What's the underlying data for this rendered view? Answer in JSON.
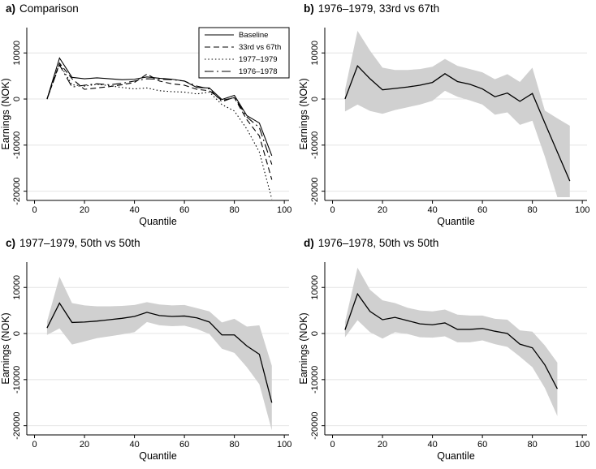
{
  "figure": {
    "background": "#ffffff",
    "line_color": "#000000",
    "band_color": "#d0d0d0",
    "grid_color": "#e4e4e4",
    "axis_color": "#000000",
    "legend_border_color": "#000000"
  },
  "chart_data": [
    {
      "id": "a",
      "type": "line",
      "panel_label": "a)",
      "title": "Comparison",
      "xlabel": "Quantile",
      "ylabel": "Earnings (NOK)",
      "xlim": [
        -3.1,
        101.9
      ],
      "ylim": [
        -22000,
        15500
      ],
      "xticks": [
        0,
        20,
        40,
        60,
        80,
        100
      ],
      "yticks": [
        -20000,
        -10000,
        0,
        10000
      ],
      "xtick_labels": [
        "0",
        "20",
        "40",
        "60",
        "80",
        "100"
      ],
      "ytick_labels": [
        "-20000",
        "-10000",
        "0",
        "10000"
      ],
      "grid": "horizontal",
      "legend": {
        "position": "top-right"
      },
      "x": [
        5,
        10,
        15,
        20,
        25,
        30,
        35,
        40,
        45,
        50,
        55,
        60,
        65,
        70,
        75,
        80,
        85,
        90,
        95
      ],
      "series": [
        {
          "name": "Baseline",
          "dash": "solid",
          "values": [
            0,
            8900,
            4700,
            4400,
            4600,
            4400,
            4200,
            4300,
            4800,
            4500,
            4300,
            3900,
            2500,
            2400,
            -100,
            800,
            -3600,
            -5200,
            -12300
          ]
        },
        {
          "name": "33rd vs 67th",
          "dash": "dashed",
          "values": [
            0,
            7800,
            4400,
            2100,
            2400,
            2700,
            3100,
            3600,
            5400,
            3900,
            3300,
            3000,
            2100,
            1800,
            -300,
            300,
            -4500,
            -8000,
            -17500
          ]
        },
        {
          "name": "1977–1979",
          "dash": "dotted",
          "values": [
            0,
            7600,
            3100,
            2800,
            3200,
            2900,
            2500,
            2200,
            2400,
            1800,
            1600,
            1500,
            1100,
            1500,
            -1200,
            -2600,
            -6500,
            -11500,
            -21700
          ]
        },
        {
          "name": "1976–1978",
          "dash": "dashdot",
          "values": [
            0,
            7400,
            2600,
            3000,
            3300,
            3100,
            3400,
            3900,
            4400,
            4300,
            4200,
            3900,
            2800,
            2200,
            -600,
            400,
            -3900,
            -6200,
            -14200
          ]
        }
      ]
    },
    {
      "id": "b",
      "type": "line-band",
      "panel_label": "b)",
      "title": "1976–1979, 33rd vs 67th",
      "xlabel": "Quantile",
      "ylabel": "Earnings (NOK)",
      "xlim": [
        -3.1,
        101.9
      ],
      "ylim": [
        -22000,
        15500
      ],
      "xticks": [
        0,
        20,
        40,
        60,
        80,
        100
      ],
      "yticks": [
        -20000,
        -10000,
        0,
        10000
      ],
      "xtick_labels": [
        "0",
        "20",
        "40",
        "60",
        "80",
        "100"
      ],
      "ytick_labels": [
        "-20000",
        "-10000",
        "0",
        "10000"
      ],
      "grid": "horizontal",
      "x": [
        5,
        10,
        15,
        20,
        25,
        30,
        35,
        40,
        45,
        50,
        55,
        60,
        65,
        70,
        75,
        80,
        85,
        90,
        95
      ],
      "series": [
        {
          "name": "",
          "dash": "solid",
          "values": [
            0,
            7200,
            4400,
            2000,
            2300,
            2600,
            3000,
            3600,
            5500,
            3800,
            3200,
            2200,
            500,
            1300,
            -500,
            1200,
            -5200,
            -11500,
            -17800
          ]
        }
      ],
      "band": {
        "upper": [
          2000,
          14800,
          10500,
          6800,
          6300,
          6300,
          6500,
          7000,
          8700,
          7200,
          6500,
          5800,
          4300,
          5400,
          3700,
          6800,
          -2500,
          -4200,
          -5800
        ],
        "lower": [
          -2700,
          -1200,
          -2600,
          -3200,
          -2400,
          -1800,
          -1200,
          -400,
          1800,
          500,
          -300,
          -1200,
          -3400,
          -2900,
          -5600,
          -4700,
          -12500,
          -21300,
          -21300
        ]
      }
    },
    {
      "id": "c",
      "type": "line-band",
      "panel_label": "c)",
      "title": "1977–1979, 50th vs 50th",
      "xlabel": "Quantile",
      "ylabel": "Earnings (NOK)",
      "xlim": [
        -3.1,
        101.9
      ],
      "ylim": [
        -22000,
        15500
      ],
      "xticks": [
        0,
        20,
        40,
        60,
        80,
        100
      ],
      "yticks": [
        -20000,
        -10000,
        0,
        10000
      ],
      "xtick_labels": [
        "0",
        "20",
        "40",
        "60",
        "80",
        "100"
      ],
      "ytick_labels": [
        "-20000",
        "-10000",
        "0",
        "10000"
      ],
      "grid": "horizontal",
      "x": [
        5,
        10,
        15,
        20,
        25,
        30,
        35,
        40,
        45,
        50,
        55,
        60,
        65,
        70,
        75,
        80,
        85,
        90,
        95
      ],
      "series": [
        {
          "name": "",
          "dash": "solid",
          "values": [
            1200,
            6600,
            2400,
            2500,
            2700,
            3000,
            3300,
            3700,
            4600,
            3900,
            3700,
            3800,
            3400,
            2500,
            -300,
            -300,
            -2700,
            -4500,
            -15000
          ]
        }
      ],
      "band": {
        "upper": [
          2600,
          12300,
          6600,
          6100,
          5900,
          5900,
          6000,
          6200,
          6800,
          6300,
          6100,
          6200,
          5500,
          4800,
          2400,
          3200,
          1500,
          1800,
          -7000
        ],
        "lower": [
          -300,
          1100,
          -2400,
          -1700,
          -1000,
          -600,
          -200,
          300,
          2500,
          1800,
          1600,
          1700,
          1000,
          -100,
          -3300,
          -4200,
          -7300,
          -11000,
          -21000
        ]
      }
    },
    {
      "id": "d",
      "type": "line-band",
      "panel_label": "d)",
      "title": "1976–1978, 50th vs 50th",
      "xlabel": "Quantile",
      "ylabel": "Earnings (NOK)",
      "xlim": [
        -3.1,
        101.9
      ],
      "ylim": [
        -22000,
        15500
      ],
      "xticks": [
        0,
        20,
        40,
        60,
        80,
        100
      ],
      "yticks": [
        -20000,
        -10000,
        0,
        10000
      ],
      "xtick_labels": [
        "0",
        "20",
        "40",
        "60",
        "80",
        "100"
      ],
      "ytick_labels": [
        "-20000",
        "-10000",
        "0",
        "10000"
      ],
      "grid": "horizontal",
      "x": [
        5,
        10,
        15,
        20,
        25,
        30,
        35,
        40,
        45,
        50,
        55,
        60,
        65,
        70,
        75,
        80,
        85,
        90
      ],
      "series": [
        {
          "name": "",
          "dash": "solid",
          "values": [
            800,
            8600,
            4800,
            3000,
            3500,
            2800,
            2100,
            1900,
            2300,
            900,
            900,
            1100,
            500,
            0,
            -2300,
            -3100,
            -6800,
            -12000
          ]
        }
      ],
      "band": {
        "upper": [
          2500,
          14300,
          9500,
          7200,
          6600,
          5600,
          5000,
          4800,
          5200,
          4100,
          3900,
          3900,
          3200,
          3000,
          700,
          400,
          -2600,
          -6300
        ],
        "lower": [
          -800,
          2900,
          300,
          -1100,
          300,
          -100,
          -800,
          -900,
          -600,
          -1900,
          -1900,
          -1500,
          -2300,
          -2900,
          -5000,
          -7300,
          -11800,
          -17900
        ]
      }
    }
  ]
}
